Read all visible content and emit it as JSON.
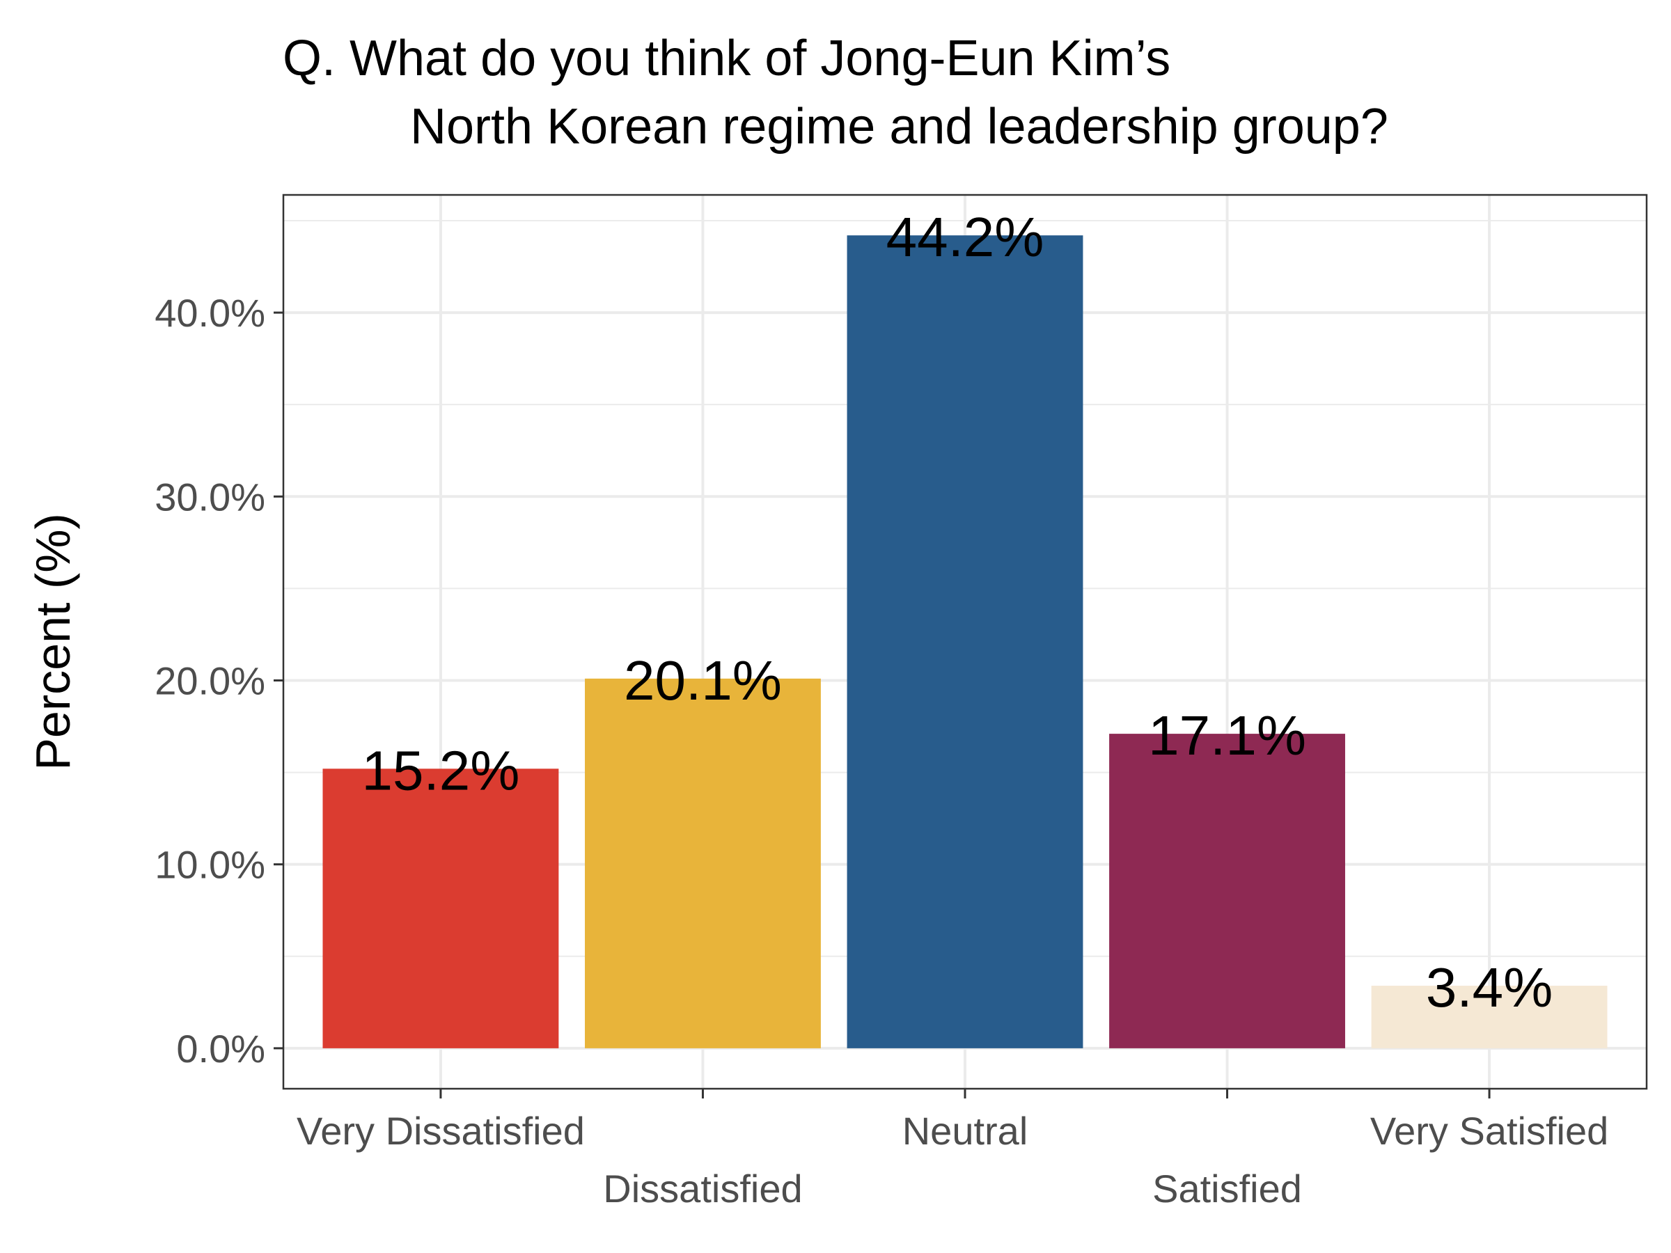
{
  "chart_data": {
    "type": "bar",
    "title": [
      "Q. What do you think of Jong-Eun Kim’s",
      "North Korean regime and leadership group?"
    ],
    "ylabel": "Percent (%)",
    "xlabel": "",
    "categories": [
      "Very Dissatisfied",
      "Dissatisfied",
      "Neutral",
      "Satisfied",
      "Very Satisfied"
    ],
    "values": [
      15.2,
      20.1,
      44.2,
      17.1,
      3.4
    ],
    "data_labels": [
      "15.2%",
      "20.1%",
      "44.2%",
      "17.1%",
      "3.4%"
    ],
    "colors": [
      "#DB3C30",
      "#E8B43A",
      "#285C8C",
      "#8E2953",
      "#F5E8D4"
    ],
    "ylim": [
      -2.2,
      46.4
    ],
    "yticks": [
      0,
      10,
      20,
      30,
      40
    ],
    "ytick_labels": [
      "0.0%",
      "10.0%",
      "20.0%",
      "30.0%",
      "40.0%"
    ],
    "grid": true,
    "legend": "none"
  }
}
